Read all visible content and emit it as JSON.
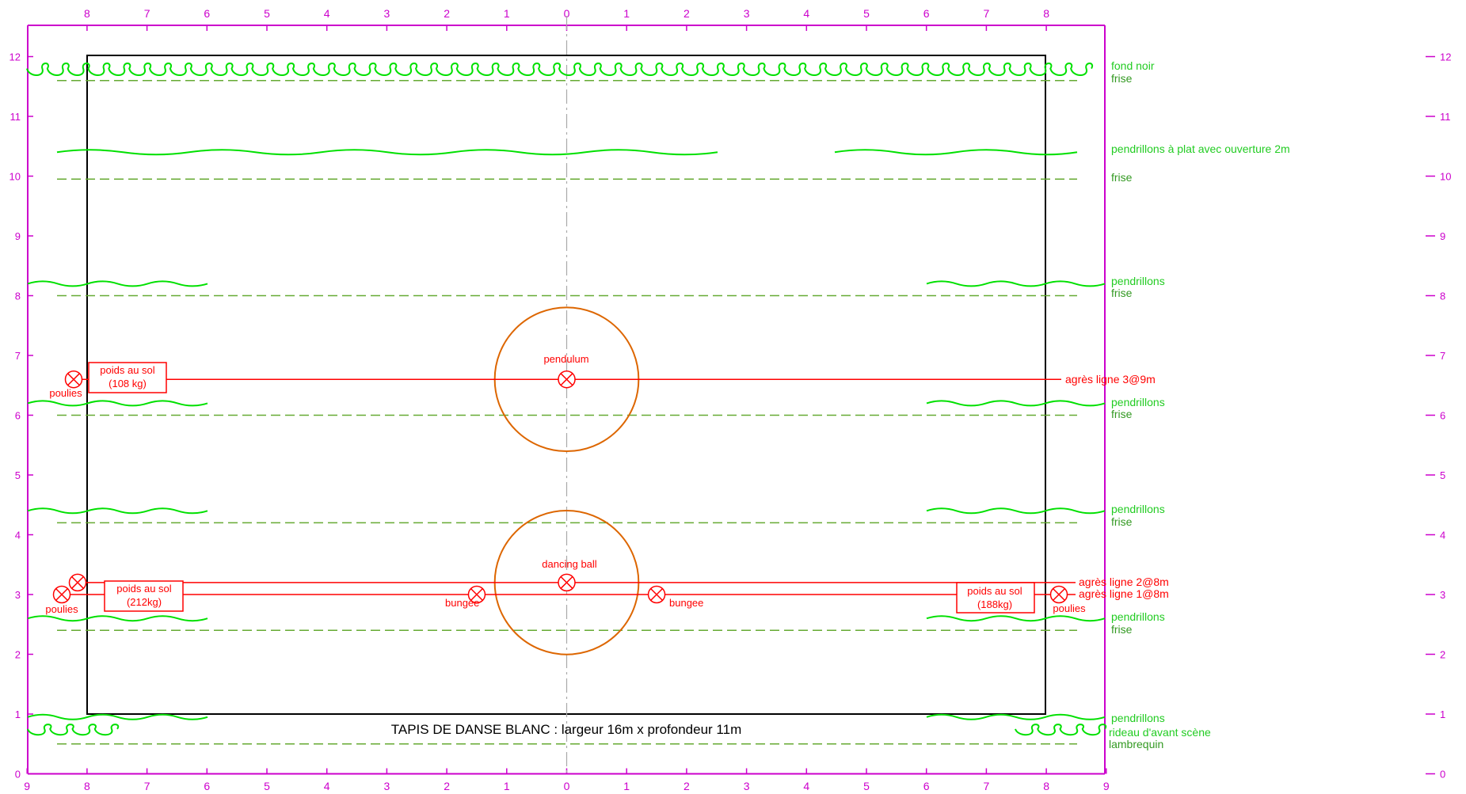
{
  "colors": {
    "axis": "#cc00cc",
    "drape": "#00e000",
    "drape_label": "#22cc22",
    "frise": "#66aa33",
    "frise_label": "#339922",
    "rig": "#ff0000",
    "circle": "#dd6600",
    "mat": "#000000",
    "center": "#aaaaaa"
  },
  "top_axis_labels": [
    "8",
    "7",
    "6",
    "5",
    "4",
    "3",
    "2",
    "1",
    "0",
    "1",
    "2",
    "3",
    "4",
    "5",
    "6",
    "7",
    "8"
  ],
  "bottom_axis_labels": [
    "9",
    "8",
    "7",
    "6",
    "5",
    "4",
    "3",
    "2",
    "1",
    "0",
    "1",
    "2",
    "3",
    "4",
    "5",
    "6",
    "7",
    "8",
    "9"
  ],
  "depth_labels": [
    "0",
    "1",
    "2",
    "3",
    "4",
    "5",
    "6",
    "7",
    "8",
    "9",
    "10",
    "11",
    "12"
  ],
  "mat_caption": "TAPIS DE DANSE BLANC : largeur 16m x profondeur 11m",
  "legend": {
    "fond_noir": "fond noir",
    "frise": "frise",
    "pendrillons_plat": "pendrillons à plat avec ouverture 2m",
    "pendrillons": "pendrillons",
    "rideau": "rideau d'avant scène",
    "lambrequin": "lambrequin"
  },
  "rigging": {
    "ligne3": "agrès ligne 3@9m",
    "ligne2": "agrès ligne 2@8m",
    "ligne1": "agrès ligne 1@8m",
    "pendulum": "pendulum",
    "dancing_ball": "dancing ball",
    "bungee": "bungee",
    "poulies": "poulies",
    "poids_label": "poids au sol",
    "poids_108": "(108 kg)",
    "poids_212": "(212kg)",
    "poids_188": "(188kg)"
  },
  "depth_markers": {
    "fond_noir": 11.8,
    "frise_back": 11.6,
    "pendrillons_plat": 10.4,
    "frise_10": 9.95,
    "pendrillons_8": 8.2,
    "frise_8": 8.0,
    "ligne3": 6.6,
    "pendrillons_6": 6.2,
    "frise_6": 6.0,
    "pendrillons_4": 4.4,
    "frise_4": 4.2,
    "ligne2": 3.2,
    "ligne1": 3.0,
    "pendrillons_2": 2.6,
    "frise_2": 2.4,
    "pendrillons_1": 0.95,
    "rideau": 0.75,
    "lambrequin": 0.5,
    "pendulum_radius": 1.2,
    "ball_radius": 1.2,
    "bungee_offset": 1.5
  }
}
